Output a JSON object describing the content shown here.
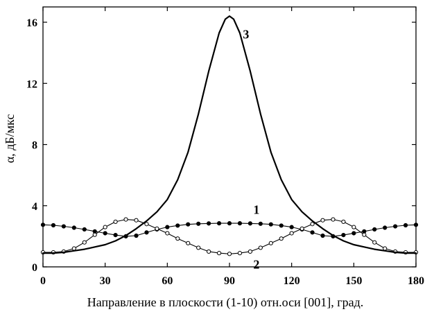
{
  "chart_data": {
    "type": "line",
    "title": "",
    "xlabel": "Направление в плоскости (1-10) отн.оси  [001], град.",
    "ylabel": "α, дБ/мкс",
    "xlim": [
      0,
      180
    ],
    "ylim": [
      0,
      17
    ],
    "x_ticks": [
      0,
      30,
      60,
      90,
      120,
      150,
      180
    ],
    "y_ticks": [
      0,
      4,
      8,
      12,
      16
    ],
    "grid": false,
    "legend": "none",
    "series": [
      {
        "name": "1",
        "marker": "filled-circle",
        "color": "#000000",
        "x": [
          0,
          5,
          10,
          15,
          20,
          25,
          30,
          35,
          40,
          45,
          50,
          55,
          60,
          65,
          70,
          75,
          80,
          85,
          90,
          95,
          100,
          105,
          110,
          115,
          120,
          125,
          130,
          135,
          140,
          145,
          150,
          155,
          160,
          165,
          170,
          175,
          180
        ],
        "values": [
          2.75,
          2.72,
          2.65,
          2.56,
          2.45,
          2.32,
          2.2,
          2.08,
          2.0,
          2.04,
          2.25,
          2.45,
          2.6,
          2.7,
          2.78,
          2.82,
          2.84,
          2.85,
          2.85,
          2.85,
          2.84,
          2.82,
          2.78,
          2.7,
          2.6,
          2.45,
          2.25,
          2.04,
          2.0,
          2.08,
          2.2,
          2.32,
          2.45,
          2.56,
          2.65,
          2.72,
          2.75
        ]
      },
      {
        "name": "2",
        "marker": "open-circle",
        "color": "#000000",
        "x": [
          0,
          5,
          10,
          15,
          20,
          25,
          30,
          35,
          40,
          45,
          50,
          55,
          60,
          65,
          70,
          75,
          80,
          85,
          90,
          95,
          100,
          105,
          110,
          115,
          120,
          125,
          130,
          135,
          140,
          145,
          150,
          155,
          160,
          165,
          170,
          175,
          180
        ],
        "values": [
          0.95,
          0.95,
          1.0,
          1.2,
          1.6,
          2.1,
          2.6,
          2.95,
          3.1,
          3.05,
          2.8,
          2.5,
          2.2,
          1.85,
          1.55,
          1.25,
          1.0,
          0.9,
          0.85,
          0.9,
          1.0,
          1.25,
          1.55,
          1.85,
          2.2,
          2.5,
          2.8,
          3.05,
          3.1,
          2.95,
          2.6,
          2.1,
          1.6,
          1.2,
          1.0,
          0.95,
          0.95
        ]
      },
      {
        "name": "3",
        "marker": "none",
        "color": "#000000",
        "x": [
          0,
          5,
          10,
          15,
          20,
          25,
          30,
          35,
          40,
          45,
          50,
          55,
          60,
          65,
          70,
          75,
          80,
          85,
          88,
          90,
          92,
          95,
          100,
          105,
          110,
          115,
          120,
          125,
          130,
          135,
          140,
          145,
          150,
          155,
          160,
          165,
          170,
          175,
          180
        ],
        "values": [
          0.9,
          0.9,
          0.95,
          1.05,
          1.15,
          1.3,
          1.45,
          1.7,
          2.05,
          2.5,
          3.0,
          3.6,
          4.4,
          5.7,
          7.5,
          10.0,
          12.8,
          15.3,
          16.2,
          16.4,
          16.2,
          15.3,
          12.8,
          10.0,
          7.5,
          5.7,
          4.4,
          3.6,
          3.0,
          2.5,
          2.05,
          1.7,
          1.45,
          1.3,
          1.15,
          1.05,
          0.95,
          0.9,
          0.9
        ]
      }
    ]
  }
}
